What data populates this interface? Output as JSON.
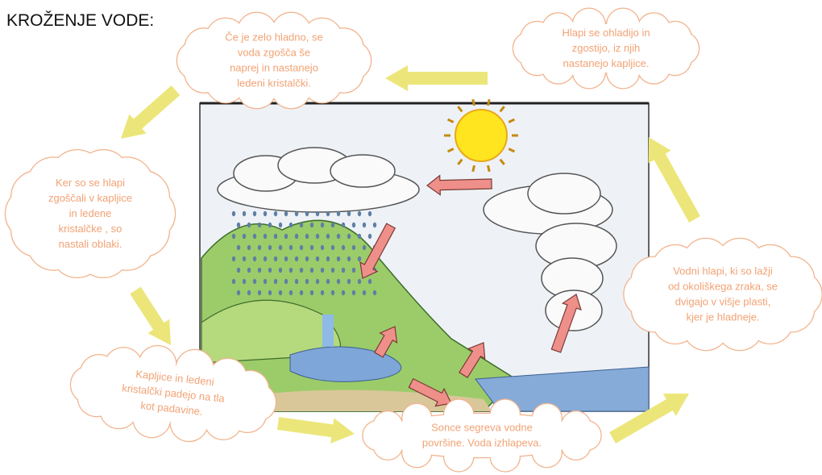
{
  "title": "KROŽENJE VODE:",
  "clouds": [
    {
      "lines": [
        "Če je zelo hladno, se",
        "voda zgošča še",
        "naprej in nastanejo",
        "ledeni kristalčki."
      ]
    },
    {
      "lines": [
        "Hlapi se ohladijo in",
        "zgostijo, iz njih",
        "nastanejo kapljice."
      ]
    },
    {
      "lines": [
        "Ker so se hlapi",
        "zgoščali v kapljice",
        "in ledene",
        "kristalčke , so",
        "nastali oblaki."
      ]
    },
    {
      "lines": [
        "Vodni hlapi, ki so lažji",
        "od okoliškega zraka, se",
        "dvigajo v višje plasti,",
        "kjer je hladneje."
      ]
    },
    {
      "lines": [
        "Kapljice in ledeni",
        "kristalčki padejo na tla",
        "kot padavine."
      ]
    },
    {
      "lines": [
        "Sonce segreva vodne",
        "površine. Voda izhlapeva."
      ]
    }
  ]
}
